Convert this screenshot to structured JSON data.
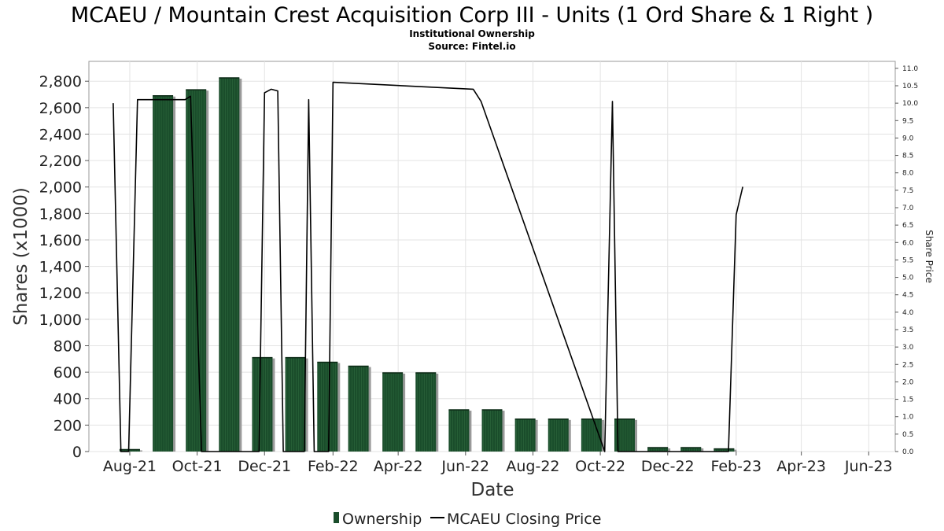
{
  "chart_data": {
    "type": "bar",
    "title": "MCAEU / Mountain Crest Acquisition Corp III - Units (1 Ord Share & 1 Right )",
    "subtitle_lines": [
      "Institutional Ownership",
      "Source: Fintel.io"
    ],
    "xlabel": "Date",
    "ylabel": "Shares (x1000)",
    "y2label": "Share Price",
    "ylim": [
      0,
      2950
    ],
    "y2lim": [
      0,
      11.2
    ],
    "xlim": [
      "2021-06-25",
      "2023-06-25"
    ],
    "y_ticks": [
      0,
      200,
      400,
      600,
      800,
      1000,
      1200,
      1400,
      1600,
      1800,
      2000,
      2200,
      2400,
      2600,
      2800
    ],
    "y_tick_labels": [
      "0",
      "200",
      "400",
      "600",
      "800",
      "1,000",
      "1,200",
      "1,400",
      "1,600",
      "1,800",
      "2,000",
      "2,200",
      "2,400",
      "2,600",
      "2,800"
    ],
    "y2_ticks": [
      0,
      0.5,
      1,
      1.5,
      2,
      2.5,
      3,
      3.5,
      4,
      4.5,
      5,
      5.5,
      6,
      6.5,
      7,
      7.5,
      8,
      8.5,
      9,
      9.5,
      10,
      10.5,
      11
    ],
    "y2_tick_labels": [
      "0.0",
      "0.5",
      "1.0",
      "1.5",
      "2.0",
      "2.5",
      "3.0",
      "3.5",
      "4.0",
      "4.5",
      "5.0",
      "5.5",
      "6.0",
      "6.5",
      "7.0",
      "7.5",
      "8.0",
      "8.5",
      "9.0",
      "9.5",
      "10.0",
      "10.5",
      "11.0"
    ],
    "x_ticks": [
      {
        "date": "2021-08-01",
        "label": "Aug-21"
      },
      {
        "date": "2021-10-01",
        "label": "Oct-21"
      },
      {
        "date": "2021-12-01",
        "label": "Dec-21"
      },
      {
        "date": "2022-02-01",
        "label": "Feb-22"
      },
      {
        "date": "2022-04-01",
        "label": "Apr-22"
      },
      {
        "date": "2022-06-01",
        "label": "Jun-22"
      },
      {
        "date": "2022-08-01",
        "label": "Aug-22"
      },
      {
        "date": "2022-10-01",
        "label": "Oct-22"
      },
      {
        "date": "2022-12-01",
        "label": "Dec-22"
      },
      {
        "date": "2023-02-01",
        "label": "Feb-23"
      },
      {
        "date": "2023-04-01",
        "label": "Apr-23"
      },
      {
        "date": "2023-06-01",
        "label": "Jun-23"
      }
    ],
    "grid": true,
    "legend_position": "bottom-center",
    "series": [
      {
        "name": "Ownership",
        "kind": "bar",
        "color": "#1a4d2b",
        "x": [
          "2021-08-01",
          "2021-08-31",
          "2021-09-30",
          "2021-10-30",
          "2021-11-29",
          "2021-12-29",
          "2022-01-27",
          "2022-02-24",
          "2022-03-27",
          "2022-04-26",
          "2022-05-26",
          "2022-06-25",
          "2022-07-25",
          "2022-08-24",
          "2022-09-23",
          "2022-10-23",
          "2022-11-22",
          "2022-12-22",
          "2023-01-21"
        ],
        "values": [
          15,
          2690,
          2735,
          2825,
          710,
          710,
          675,
          645,
          595,
          595,
          315,
          315,
          245,
          245,
          245,
          245,
          30,
          30,
          20
        ]
      },
      {
        "name": "MCAEU Closing Price",
        "kind": "line",
        "color": "#000000",
        "x": [
          "2021-07-17",
          "2021-07-24",
          "2021-07-31",
          "2021-08-08",
          "2021-09-20",
          "2021-09-25",
          "2021-10-05",
          "2021-10-12",
          "2021-11-26",
          "2021-12-01",
          "2021-12-07",
          "2021-12-13",
          "2021-12-18",
          "2021-12-24",
          "2022-01-06",
          "2022-01-10",
          "2022-01-15",
          "2022-01-21",
          "2022-01-28",
          "2022-02-01",
          "2022-06-08",
          "2022-06-15",
          "2022-10-05",
          "2022-10-12",
          "2022-10-17",
          "2022-10-26",
          "2023-01-25",
          "2023-02-01",
          "2023-02-07"
        ],
        "values": [
          10.0,
          0,
          0,
          10.1,
          10.1,
          10.2,
          0,
          0,
          0,
          10.3,
          10.4,
          10.35,
          0,
          0,
          0,
          10.1,
          0,
          0,
          0,
          10.6,
          10.4,
          10.05,
          0,
          10.05,
          0,
          0,
          0,
          6.8,
          7.6
        ]
      }
    ]
  }
}
